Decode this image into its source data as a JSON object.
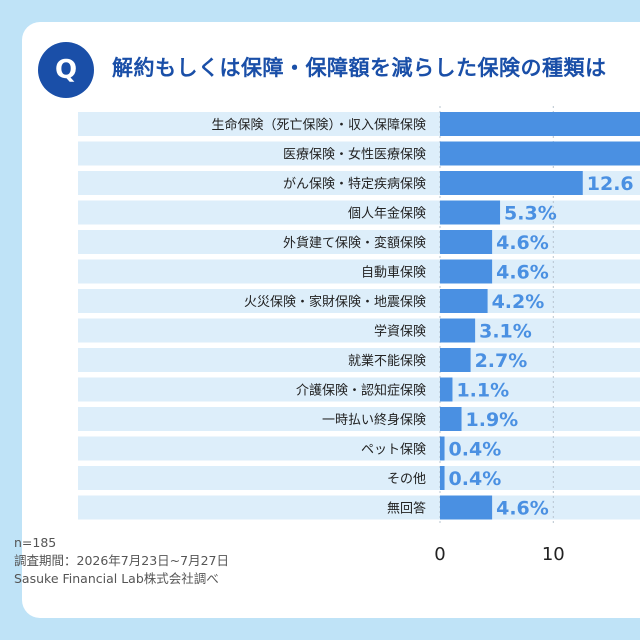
{
  "title": "解約もしくは保障・保障額を減らした保険の種類は",
  "badge": "Q",
  "footer": {
    "n": "n=185",
    "period": "調査期間：2026年7月23日~7月27日",
    "source": "Sasuke Financial Lab株式会社調べ"
  },
  "colors": {
    "bar": "#4a90e2",
    "label": "#4a90e2",
    "band": "#ddeefa",
    "accent": "#1a4fa8"
  },
  "chart_data": {
    "type": "bar",
    "orientation": "horizontal",
    "categories": [
      "生命保険（死亡保険）・収入保障保険",
      "医療保険・女性医療保険",
      "がん保険・特定疾病保険",
      "個人年金保険",
      "外貨建て保険・変額保険",
      "自動車保険",
      "火災保険・家財保険・地震保険",
      "学資保険",
      "就業不能保険",
      "介護保険・認知症保険",
      "一時払い終身保険",
      "ペット保険",
      "その他",
      "無回答"
    ],
    "values": [
      null,
      null,
      12.6,
      5.3,
      4.6,
      4.6,
      4.2,
      3.1,
      2.7,
      1.1,
      1.9,
      0.4,
      0.4,
      4.6
    ],
    "data_labels": [
      "",
      "",
      "12.6",
      "5.3%",
      "4.6%",
      "4.6%",
      "4.2%",
      "3.1%",
      "2.7%",
      "1.1%",
      "1.9%",
      "0.4%",
      "0.4%",
      "4.6%"
    ],
    "x_ticks": [
      "0",
      "10"
    ],
    "xlim": [
      0,
      10
    ],
    "grid": true
  }
}
